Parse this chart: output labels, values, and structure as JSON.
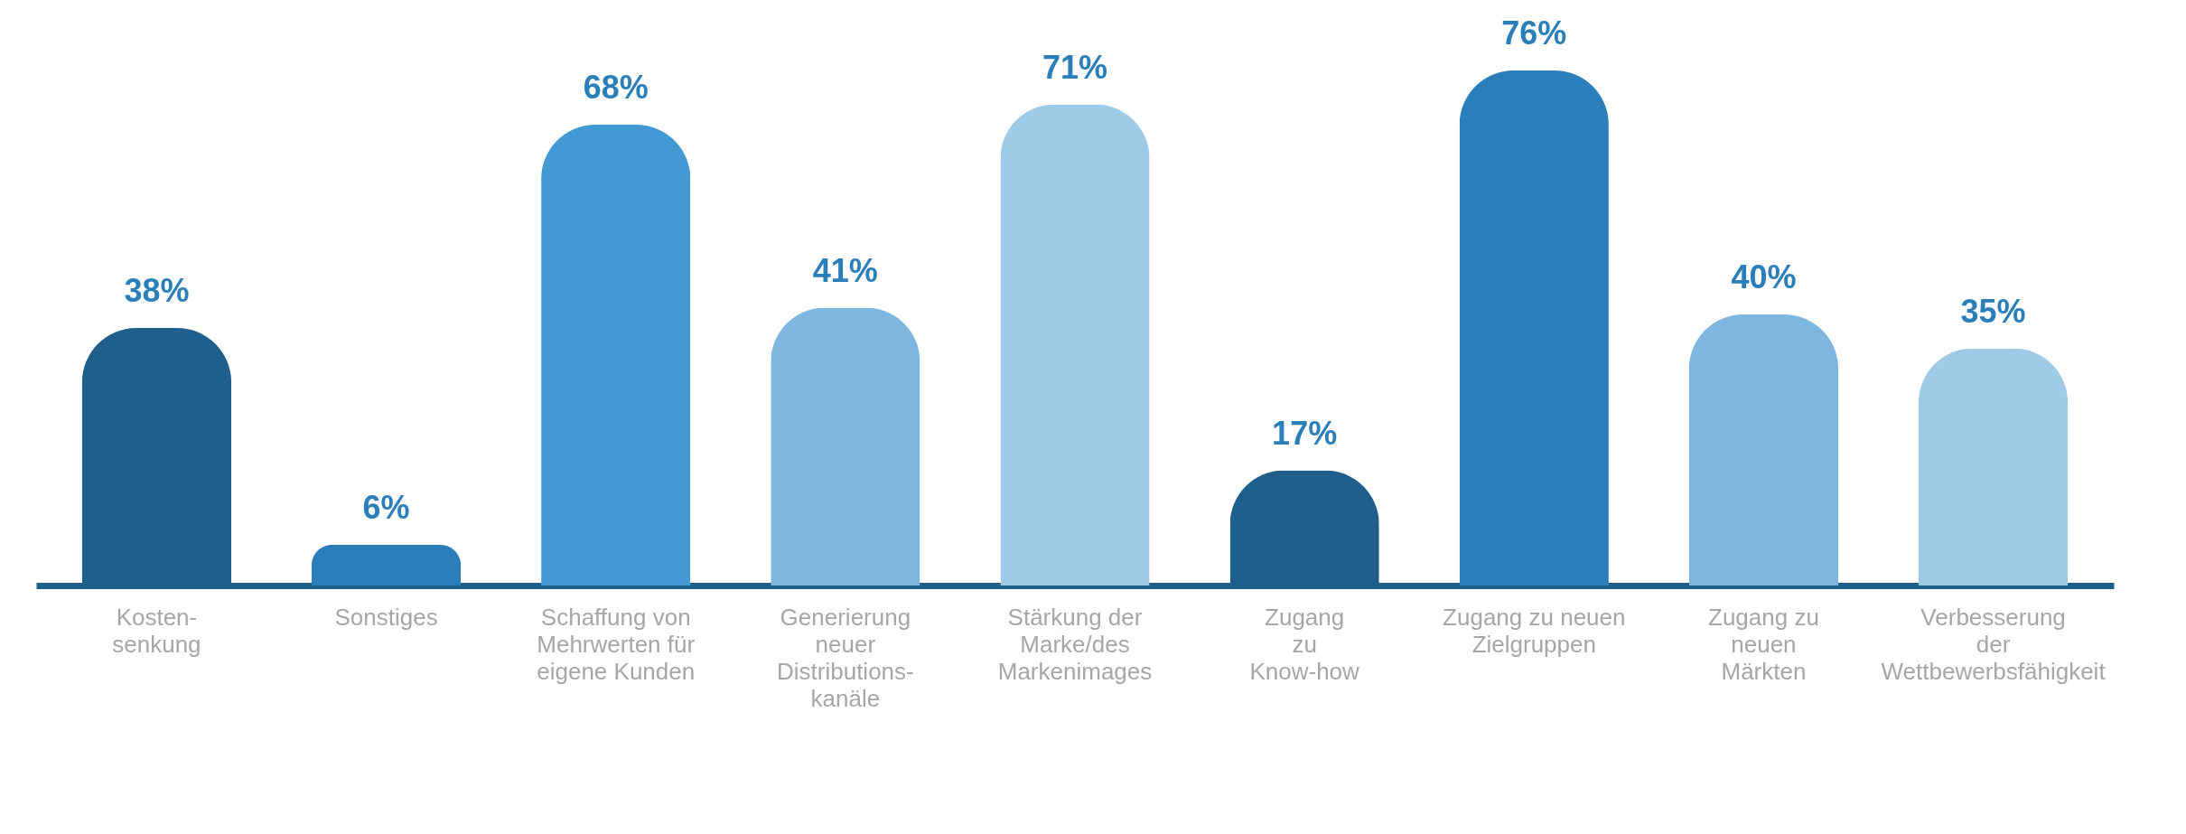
{
  "chart_data": {
    "type": "bar",
    "categories": [
      "Kosten-\nsenkung",
      "Sonstiges",
      "Schaffung von\nMehrwerten für\neigene Kunden",
      "Generierung\nneuer\nDistributions-\nkanäle",
      "Stärkung der\nMarke/des\nMarkenimages",
      "Zugang\nzu\nKnow-how",
      "Zugang zu neuen\nZielgruppen",
      "Zugang zu\nneuen\nMärkten",
      "Verbesserung\nder\nWettbewerbsfähigkeit"
    ],
    "values": [
      38,
      6,
      68,
      41,
      71,
      17,
      76,
      40,
      35
    ],
    "value_labels": [
      "38%",
      "6%",
      "68%",
      "41%",
      "71%",
      "17%",
      "76%",
      "40%",
      "35%"
    ],
    "colors": [
      "#1f5f8b",
      "#2a7fba",
      "#4299d4",
      "#7db7e0",
      "#a0cbe8",
      "#1f5f8b",
      "#2a7fba",
      "#7db7e0",
      "#a0cbe8"
    ],
    "grid": false,
    "legend": false
  }
}
